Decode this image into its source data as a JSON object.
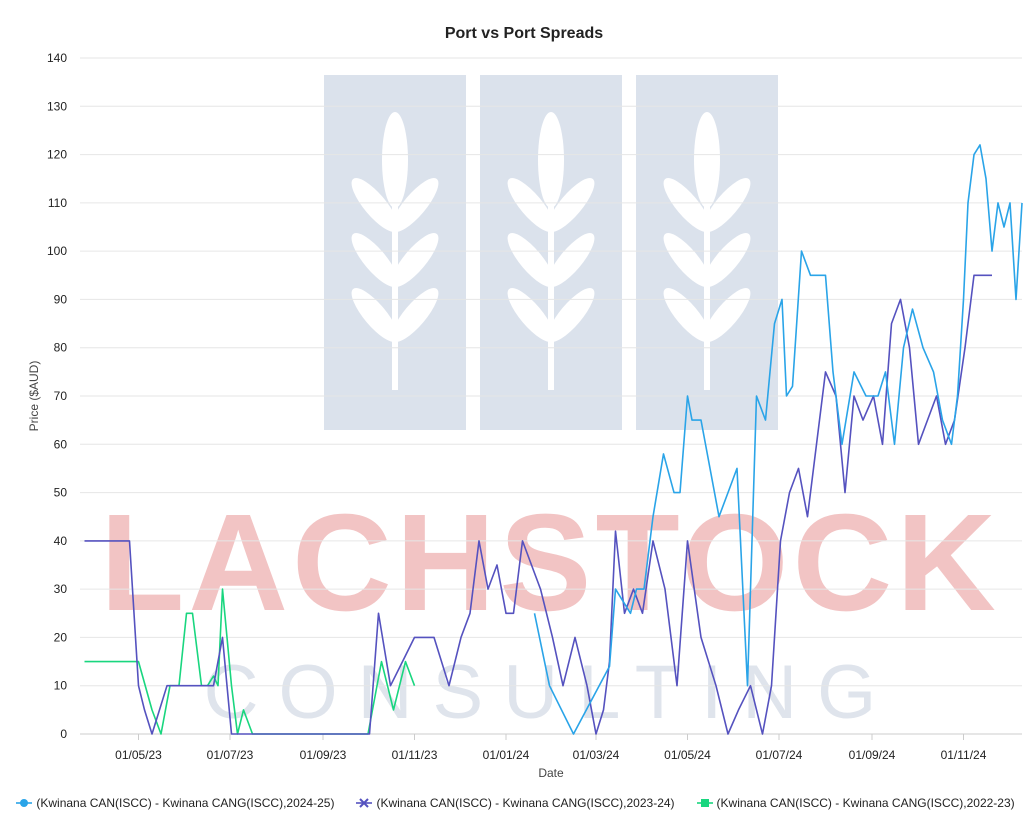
{
  "chart_data": {
    "type": "line",
    "title": "Port vs Port Spreads",
    "xlabel": "Date",
    "ylabel": "Price ($AUD)",
    "ylim": [
      0,
      140
    ],
    "yticks": [
      "0",
      "10",
      "20",
      "30",
      "40",
      "50",
      "60",
      "70",
      "80",
      "90",
      "100",
      "110",
      "120",
      "130",
      "140"
    ],
    "xlim": [
      "2023-03-23",
      "2024-12-10"
    ],
    "xticks": [
      {
        "date": "2023-05-01",
        "label": "01/05/23"
      },
      {
        "date": "2023-07-01",
        "label": "01/07/23"
      },
      {
        "date": "2023-09-01",
        "label": "01/09/23"
      },
      {
        "date": "2023-11-01",
        "label": "01/11/23"
      },
      {
        "date": "2024-01-01",
        "label": "01/01/24"
      },
      {
        "date": "2024-03-01",
        "label": "01/03/24"
      },
      {
        "date": "2024-05-01",
        "label": "01/05/24"
      },
      {
        "date": "2024-07-01",
        "label": "01/07/24"
      },
      {
        "date": "2024-09-01",
        "label": "01/09/24"
      },
      {
        "date": "2024-11-01",
        "label": "01/11/24"
      }
    ],
    "grid": true,
    "legend_position": "bottom",
    "series": [
      {
        "name": "(Kwinana CAN(ISCC) - Kwinana CANG(ISCC),2024-25)",
        "color": "#2aa4e8",
        "marker": "circle",
        "x": [
          "2024-01-20",
          "2024-01-30",
          "2024-02-15",
          "2024-03-10",
          "2024-03-14",
          "2024-03-18",
          "2024-03-24",
          "2024-03-28",
          "2024-04-02",
          "2024-04-08",
          "2024-04-15",
          "2024-04-22",
          "2024-04-26",
          "2024-05-01",
          "2024-05-04",
          "2024-05-10",
          "2024-05-16",
          "2024-05-22",
          "2024-05-28",
          "2024-06-03",
          "2024-06-10",
          "2024-06-16",
          "2024-06-22",
          "2024-06-28",
          "2024-07-03",
          "2024-07-06",
          "2024-07-10",
          "2024-07-16",
          "2024-07-22",
          "2024-07-26",
          "2024-08-01",
          "2024-08-06",
          "2024-08-12",
          "2024-08-20",
          "2024-08-28",
          "2024-09-05",
          "2024-09-10",
          "2024-09-16",
          "2024-09-22",
          "2024-09-28",
          "2024-10-05",
          "2024-10-12",
          "2024-10-18",
          "2024-10-24",
          "2024-10-28",
          "2024-11-01",
          "2024-11-04",
          "2024-11-08",
          "2024-11-12",
          "2024-11-16",
          "2024-11-20",
          "2024-11-24",
          "2024-11-28",
          "2024-12-02",
          "2024-12-06",
          "2024-12-10"
        ],
        "values": [
          25,
          10,
          0,
          14,
          30,
          28,
          25,
          30,
          30,
          45,
          58,
          50,
          50,
          70,
          65,
          65,
          55,
          45,
          50,
          55,
          10,
          70,
          65,
          85,
          90,
          70,
          72,
          100,
          95,
          95,
          95,
          75,
          60,
          75,
          70,
          70,
          75,
          60,
          80,
          88,
          80,
          75,
          65,
          60,
          70,
          90,
          110,
          120,
          122,
          115,
          100,
          110,
          105,
          110,
          90,
          110
        ]
      },
      {
        "name": "(Kwinana CAN(ISCC) - Kwinana CANG(ISCC),2023-24)",
        "color": "#5552bf",
        "marker": "x",
        "x": [
          "2023-03-26",
          "2023-04-15",
          "2023-04-25",
          "2023-05-01",
          "2023-05-05",
          "2023-05-10",
          "2023-05-15",
          "2023-05-20",
          "2023-06-01",
          "2023-06-10",
          "2023-06-20",
          "2023-06-26",
          "2023-07-02",
          "2023-10-02",
          "2023-10-08",
          "2023-10-16",
          "2023-10-24",
          "2023-11-01",
          "2023-11-14",
          "2023-11-24",
          "2023-12-02",
          "2023-12-08",
          "2023-12-14",
          "2023-12-20",
          "2023-12-26",
          "2024-01-01",
          "2024-01-06",
          "2024-01-12",
          "2024-01-18",
          "2024-01-24",
          "2024-02-01",
          "2024-02-08",
          "2024-02-16",
          "2024-02-24",
          "2024-03-01",
          "2024-03-06",
          "2024-03-10",
          "2024-03-14",
          "2024-03-20",
          "2024-03-26",
          "2024-04-01",
          "2024-04-08",
          "2024-04-16",
          "2024-04-24",
          "2024-05-01",
          "2024-05-10",
          "2024-05-20",
          "2024-05-28",
          "2024-06-04",
          "2024-06-12",
          "2024-06-20",
          "2024-06-26",
          "2024-07-02",
          "2024-07-08",
          "2024-07-14",
          "2024-07-20",
          "2024-07-26",
          "2024-08-01",
          "2024-08-08",
          "2024-08-14",
          "2024-08-20",
          "2024-08-26",
          "2024-09-02",
          "2024-09-08",
          "2024-09-14",
          "2024-09-20",
          "2024-09-26",
          "2024-10-02",
          "2024-10-08",
          "2024-10-14",
          "2024-10-20",
          "2024-10-26",
          "2024-11-02",
          "2024-11-08",
          "2024-11-14",
          "2024-11-20"
        ],
        "values": [
          40,
          40,
          40,
          10,
          5,
          0,
          5,
          10,
          10,
          10,
          10,
          20,
          0,
          0,
          25,
          10,
          15,
          20,
          20,
          10,
          20,
          25,
          40,
          30,
          35,
          25,
          25,
          40,
          35,
          30,
          20,
          10,
          20,
          10,
          0,
          5,
          15,
          42,
          25,
          30,
          25,
          40,
          30,
          10,
          40,
          20,
          10,
          0,
          5,
          10,
          0,
          10,
          40,
          50,
          55,
          45,
          60,
          75,
          70,
          50,
          70,
          65,
          70,
          60,
          85,
          90,
          80,
          60,
          65,
          70,
          60,
          65,
          80,
          95,
          95,
          95
        ]
      },
      {
        "name": "(Kwinana CAN(ISCC) - Kwinana CANG(ISCC),2022-23)",
        "color": "#19d67f",
        "marker": "square",
        "x": [
          "2023-03-26",
          "2023-04-28",
          "2023-05-01",
          "2023-05-10",
          "2023-05-16",
          "2023-05-22",
          "2023-05-28",
          "2023-06-02",
          "2023-06-06",
          "2023-06-12",
          "2023-06-16",
          "2023-06-20",
          "2023-06-23",
          "2023-06-26",
          "2023-07-02",
          "2023-07-06",
          "2023-07-10",
          "2023-07-16",
          "2023-10-01",
          "2023-10-10",
          "2023-10-18",
          "2023-10-26",
          "2023-11-01"
        ],
        "values": [
          15,
          15,
          15,
          5,
          0,
          10,
          10,
          25,
          25,
          10,
          10,
          12,
          10,
          30,
          10,
          0,
          5,
          0,
          0,
          15,
          5,
          15,
          10
        ]
      }
    ]
  },
  "watermark": {
    "top_text": "LACHSTOCK",
    "bottom_text": "CONSULTING",
    "logo": "wheat-icon"
  }
}
